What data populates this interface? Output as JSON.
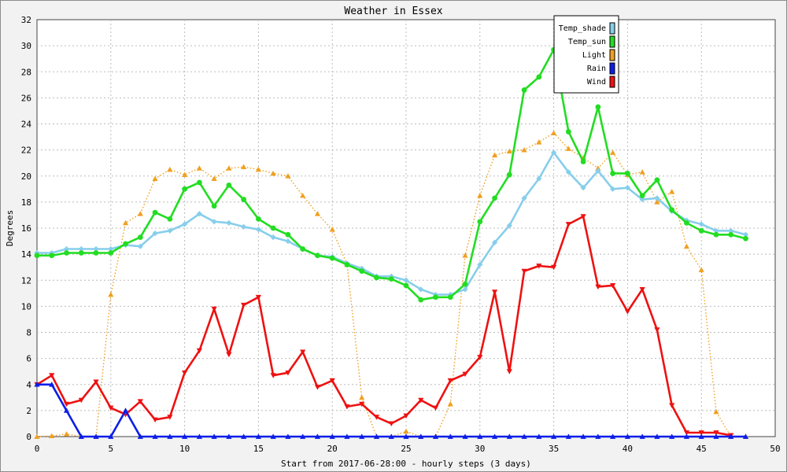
{
  "chart_data": {
    "type": "line",
    "title": "Weather in Essex",
    "xlabel": "Start from 2017-06-28:00 - hourly steps (3 days)",
    "ylabel": "Degrees",
    "xlim": [
      0,
      50
    ],
    "ylim": [
      0,
      32
    ],
    "x_ticks": [
      0,
      5,
      10,
      15,
      20,
      25,
      30,
      35,
      40,
      45,
      50
    ],
    "y_ticks": [
      0,
      2,
      4,
      6,
      8,
      10,
      12,
      14,
      16,
      18,
      20,
      22,
      24,
      26,
      28,
      30,
      32
    ],
    "grid": true,
    "legend_position": "top-right",
    "x": [
      0,
      1,
      2,
      3,
      4,
      5,
      6,
      7,
      8,
      9,
      10,
      11,
      12,
      13,
      14,
      15,
      16,
      17,
      18,
      19,
      20,
      21,
      22,
      23,
      24,
      25,
      26,
      27,
      28,
      29,
      30,
      31,
      32,
      33,
      34,
      35,
      36,
      37,
      38,
      39,
      40,
      41,
      42,
      43,
      44,
      45,
      46,
      47,
      48
    ],
    "series": [
      {
        "name": "Temp_shade",
        "color": "#87ceeb",
        "marker": "diamond",
        "values": [
          14.1,
          14.1,
          14.4,
          14.4,
          14.4,
          14.4,
          14.7,
          14.6,
          15.6,
          15.8,
          16.3,
          17.1,
          16.5,
          16.4,
          16.1,
          15.9,
          15.3,
          15.0,
          14.4,
          13.9,
          13.8,
          13.3,
          12.9,
          12.3,
          12.3,
          12.0,
          11.3,
          10.9,
          10.9,
          11.3,
          13.2,
          14.9,
          16.2,
          18.3,
          19.8,
          21.8,
          20.3,
          19.1,
          20.4,
          19.0,
          19.1,
          18.2,
          18.3,
          17.3,
          16.6,
          16.3,
          15.8,
          15.8,
          15.5
        ],
        "line_style": "solid"
      },
      {
        "name": "Temp_sun",
        "color": "#22dd22",
        "marker": "circle",
        "values": [
          13.9,
          13.9,
          14.1,
          14.1,
          14.1,
          14.1,
          14.8,
          15.3,
          17.2,
          16.7,
          19.0,
          19.5,
          17.7,
          19.3,
          18.2,
          16.7,
          16.0,
          15.5,
          14.4,
          13.9,
          13.7,
          13.2,
          12.7,
          12.2,
          12.1,
          11.6,
          10.5,
          10.7,
          10.7,
          11.7,
          16.5,
          18.3,
          20.1,
          26.6,
          27.6,
          29.7,
          23.4,
          21.1,
          25.3,
          20.2,
          20.2,
          18.5,
          19.7,
          17.4,
          16.4,
          15.8,
          15.5,
          15.5,
          15.2
        ],
        "line_style": "solid"
      },
      {
        "name": "Light",
        "color": "#f0a020",
        "marker": "triangle-up",
        "values": [
          0.0,
          0.05,
          0.2,
          0.0,
          0.0,
          10.9,
          16.4,
          17.1,
          19.8,
          20.5,
          20.1,
          20.6,
          19.8,
          20.6,
          20.7,
          20.5,
          20.2,
          20.0,
          18.5,
          17.1,
          15.9,
          13.2,
          3.0,
          0.0,
          0.0,
          0.4,
          0.0,
          0.0,
          2.5,
          13.9,
          18.5,
          21.6,
          21.9,
          22.0,
          22.6,
          23.3,
          22.1,
          21.4,
          20.6,
          21.8,
          20.1,
          20.3,
          18.0,
          18.8,
          14.6,
          12.8,
          1.9,
          0.0,
          0.0
        ],
        "line_style": "dotted"
      },
      {
        "name": "Rain",
        "color": "#0a1ee8",
        "marker": "triangle-up",
        "values": [
          4.0,
          4.0,
          2.0,
          0.0,
          0.0,
          0.0,
          2.0,
          0.0,
          0.0,
          0.0,
          0.0,
          0.0,
          0.0,
          0.0,
          0.0,
          0.0,
          0.0,
          0.0,
          0.0,
          0.0,
          0.0,
          0.0,
          0.0,
          0.0,
          0.0,
          0.0,
          0.0,
          0.0,
          0.0,
          0.0,
          0.0,
          0.0,
          0.0,
          0.0,
          0.0,
          0.0,
          0.0,
          0.0,
          0.0,
          0.0,
          0.0,
          0.0,
          0.0,
          0.0,
          0.0,
          0.0,
          0.0,
          0.0,
          0.0
        ],
        "line_style": "solid"
      },
      {
        "name": "Wind",
        "color": "#ee1111",
        "marker": "triangle-down",
        "values": [
          4.0,
          4.7,
          2.5,
          2.8,
          4.2,
          2.2,
          1.7,
          2.7,
          1.3,
          1.5,
          4.9,
          6.6,
          9.8,
          6.3,
          10.1,
          10.7,
          4.7,
          4.9,
          6.5,
          3.8,
          4.3,
          2.3,
          2.5,
          1.5,
          1.0,
          1.6,
          2.8,
          2.2,
          4.3,
          4.8,
          6.1,
          11.1,
          5.0,
          12.7,
          13.1,
          13.0,
          16.3,
          16.9,
          11.5,
          11.6,
          9.6,
          11.3,
          8.2,
          2.4,
          0.3,
          0.3,
          0.3,
          0.1,
          null
        ],
        "line_style": "solid"
      }
    ]
  }
}
